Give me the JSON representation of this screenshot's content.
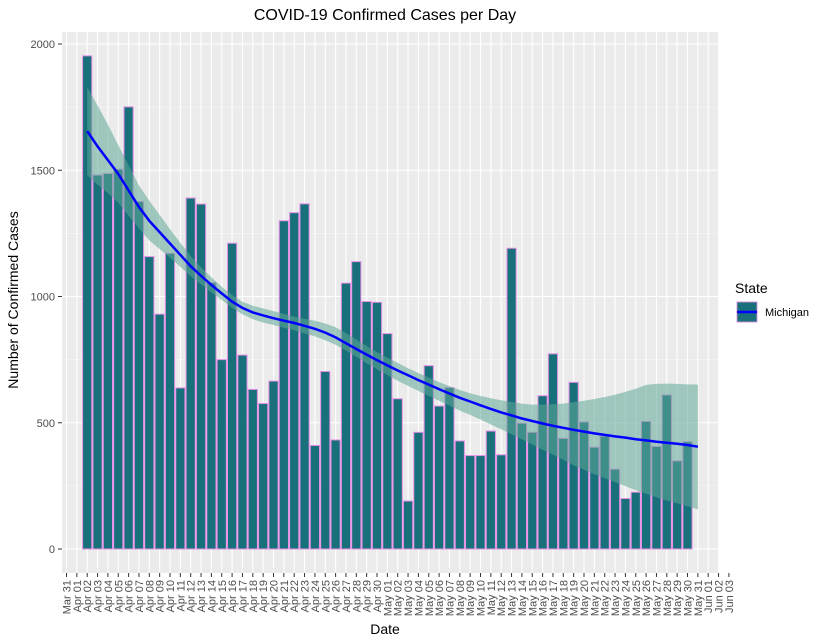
{
  "chart_data": {
    "type": "bar",
    "title": "COVID-19 Confirmed Cases per Day",
    "xlabel": "Date",
    "ylabel": "Number of Confirmed Cases",
    "ylim": [
      0,
      2000
    ],
    "yticks": [
      0,
      500,
      1000,
      1500,
      2000
    ],
    "xtick_labels": [
      "Mar 31",
      "Apr 01",
      "Apr 02",
      "Apr 03",
      "Apr 04",
      "Apr 05",
      "Apr 06",
      "Apr 07",
      "Apr 08",
      "Apr 09",
      "Apr 10",
      "Apr 11",
      "Apr 12",
      "Apr 13",
      "Apr 14",
      "Apr 15",
      "Apr 16",
      "Apr 17",
      "Apr 18",
      "Apr 19",
      "Apr 20",
      "Apr 21",
      "Apr 22",
      "Apr 23",
      "Apr 24",
      "Apr 25",
      "Apr 26",
      "Apr 27",
      "Apr 28",
      "Apr 29",
      "Apr 30",
      "May 01",
      "May 02",
      "May 03",
      "May 04",
      "May 05",
      "May 06",
      "May 07",
      "May 08",
      "May 09",
      "May 10",
      "May 11",
      "May 12",
      "May 13",
      "May 14",
      "May 15",
      "May 16",
      "May 17",
      "May 18",
      "May 19",
      "May 20",
      "May 21",
      "May 22",
      "May 23",
      "May 24",
      "May 25",
      "May 26",
      "May 27",
      "May 28",
      "May 29",
      "May 30",
      "May 31",
      "Jun 01",
      "Jun 02",
      "Jun 03"
    ],
    "categories": [
      "Apr 02",
      "Apr 03",
      "Apr 04",
      "Apr 05",
      "Apr 06",
      "Apr 07",
      "Apr 08",
      "Apr 09",
      "Apr 10",
      "Apr 11",
      "Apr 12",
      "Apr 13",
      "Apr 14",
      "Apr 15",
      "Apr 16",
      "Apr 17",
      "Apr 18",
      "Apr 19",
      "Apr 20",
      "Apr 21",
      "Apr 22",
      "Apr 23",
      "Apr 24",
      "Apr 25",
      "Apr 26",
      "Apr 27",
      "Apr 28",
      "Apr 29",
      "Apr 30",
      "May 01",
      "May 02",
      "May 03",
      "May 04",
      "May 05",
      "May 06",
      "May 07",
      "May 08",
      "May 09",
      "May 10",
      "May 11",
      "May 12",
      "May 13",
      "May 14",
      "May 15",
      "May 16",
      "May 17",
      "May 18",
      "May 19",
      "May 20",
      "May 21",
      "May 22",
      "May 23",
      "May 24",
      "May 25",
      "May 26",
      "May 27",
      "May 28",
      "May 29",
      "May 30",
      "May 31"
    ],
    "series": [
      {
        "name": "Michigan",
        "values": [
          1953,
          1481,
          1487,
          1504,
          1751,
          1376,
          1158,
          930,
          1171,
          638,
          1390,
          1366,
          1055,
          750,
          1211,
          768,
          632,
          576,
          665,
          1300,
          1332,
          1367,
          410,
          703,
          432,
          1053,
          1138,
          980,
          977,
          853,
          595,
          190,
          462,
          726,
          566,
          639,
          428,
          370,
          370,
          467,
          373,
          1191,
          498,
          462,
          607,
          773,
          438,
          660,
          503,
          403,
          447,
          316,
          200,
          225,
          505,
          406,
          610,
          349,
          425,
          null
        ],
        "smooth": [
          1655,
          1595,
          1540,
          1485,
          1420,
          1355,
          1300,
          1255,
          1210,
          1165,
          1120,
          1082,
          1046,
          1012,
          980,
          955,
          937,
          925,
          914,
          904,
          895,
          884,
          872,
          857,
          838,
          815,
          792,
          770,
          748,
          727,
          707,
          688,
          669,
          651,
          633,
          616,
          599,
          584,
          569,
          555,
          541,
          529,
          517,
          507,
          497,
          488,
          480,
          472,
          465,
          458,
          452,
          446,
          441,
          435,
          430,
          425,
          421,
          417,
          412,
          405
        ],
        "band_lower": [
          1480,
          1443,
          1410,
          1371,
          1320,
          1270,
          1222,
          1188,
          1154,
          1118,
          1080,
          1048,
          1016,
          986,
          955,
          930,
          910,
          897,
          887,
          876,
          866,
          854,
          842,
          827,
          809,
          786,
          761,
          736,
          712,
          689,
          666,
          646,
          626,
          606,
          587,
          568,
          548,
          531,
          513,
          493,
          474,
          454,
          434,
          414,
          393,
          374,
          353,
          332,
          314,
          296,
          280,
          265,
          249,
          233,
          219,
          205,
          192,
          181,
          169,
          157
        ],
        "band_upper": [
          1830,
          1757,
          1681,
          1599,
          1520,
          1440,
          1379,
          1323,
          1267,
          1213,
          1160,
          1116,
          1076,
          1038,
          1006,
          979,
          963,
          953,
          942,
          931,
          920,
          912,
          904,
          893,
          878,
          855,
          830,
          804,
          780,
          758,
          737,
          716,
          697,
          679,
          661,
          645,
          630,
          617,
          606,
          597,
          589,
          582,
          576,
          572,
          571,
          573,
          576,
          581,
          587,
          594,
          602,
          611,
          622,
          635,
          650,
          654,
          655,
          654,
          652,
          651
        ]
      }
    ],
    "colors": {
      "bar_fill": "#17707a",
      "bar_outline": "#e68fe6",
      "smooth_line": "#0000ff",
      "confidence_band": "#5fa898",
      "panel_bg": "#ebebeb",
      "grid": "#ffffff"
    },
    "legend": {
      "title": "State",
      "position": "right",
      "entries": [
        "Michigan"
      ]
    },
    "grid": true
  }
}
